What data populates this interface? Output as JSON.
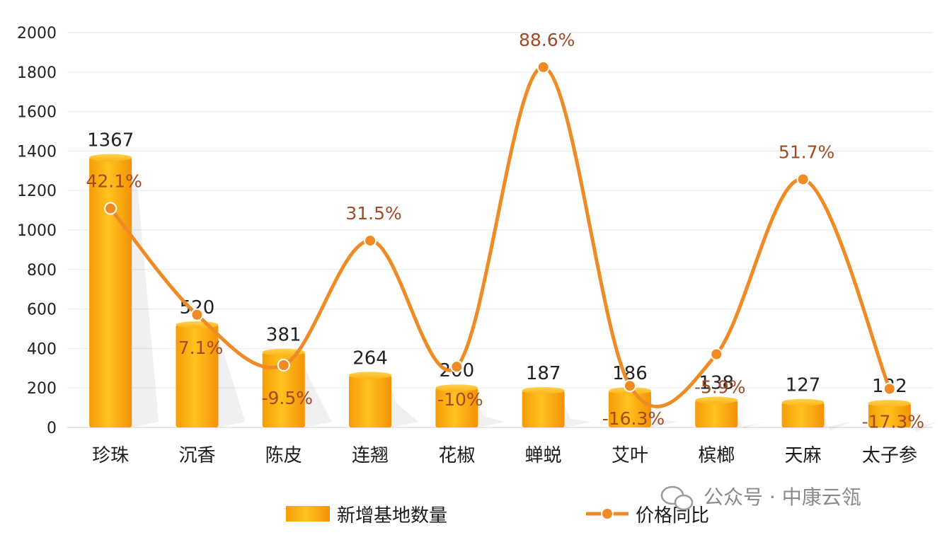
{
  "chart_data": {
    "type": "bar",
    "categories": [
      "珍珠",
      "沉香",
      "陈皮",
      "连翘",
      "花椒",
      "蝉蜕",
      "艾叶",
      "槟榔",
      "天麻",
      "太子参"
    ],
    "series": [
      {
        "name": "新增基地数量",
        "type": "bar",
        "values": [
          1367,
          520,
          381,
          264,
          200,
          187,
          186,
          138,
          127,
          122
        ],
        "labels": [
          "1367",
          "520",
          "381",
          "264",
          "200",
          "187",
          "186",
          "138",
          "127",
          "122"
        ],
        "color": "#fba80a"
      },
      {
        "name": "价格同比",
        "type": "line",
        "values": [
          42.1,
          7.1,
          -9.5,
          31.5,
          -10,
          88.6,
          -16.3,
          -5.9,
          51.7,
          -17.3
        ],
        "labels": [
          "42.1%",
          "7.1%",
          "-9.5%",
          "31.5%",
          "-10%",
          "88.6%",
          "-16.3%",
          "-5.9%",
          "51.7%",
          "-17.3%"
        ],
        "color": "#f08a24"
      }
    ],
    "yticks": [
      "0",
      "200",
      "400",
      "600",
      "800",
      "1000",
      "1200",
      "1400",
      "1600",
      "1800",
      "2000"
    ],
    "ylim": [
      0,
      2000
    ],
    "grid": true,
    "legend": "bottom"
  },
  "watermark": "公众号 · 中康云瓴"
}
